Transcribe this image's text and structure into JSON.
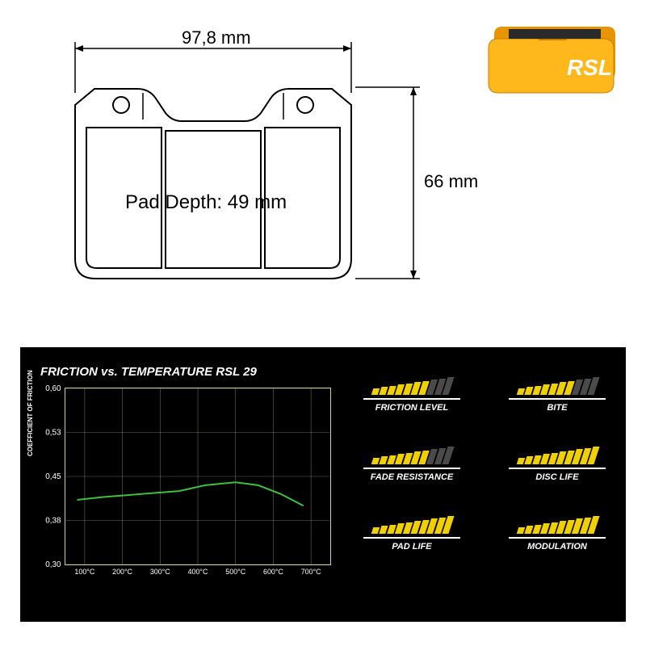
{
  "diagram": {
    "width_label": "97,8 mm",
    "height_label": "66 mm",
    "depth_label": "Pad Depth: 49 mm",
    "stroke_color": "#000000",
    "stroke_width": 2,
    "label_fontsize": 22,
    "depth_fontsize": 24
  },
  "product_photo": {
    "brand": "RSL",
    "pad_color": "#f5a200",
    "pad_highlight": "#ffb81c",
    "friction_color": "#2a2a2a",
    "logo_color": "#ffffff"
  },
  "chart": {
    "title": "FRICTION vs. TEMPERATURE RSL 29",
    "ylabel": "COEFFICIENT OF FRICTION",
    "title_fontsize": 15,
    "x_ticks": [
      "100°C",
      "200°C",
      "300°C",
      "400°C",
      "500°C",
      "600°C",
      "700°C"
    ],
    "y_ticks": [
      "0,30",
      "0,38",
      "0,45",
      "0,53",
      "0,60"
    ],
    "ylim": [
      0.3,
      0.6
    ],
    "xlim": [
      50,
      750
    ],
    "line_color": "#3fbf3f",
    "grid_color": "#d0d0a0",
    "background_color": "#000000",
    "line_width": 2,
    "curve": [
      [
        80,
        0.41
      ],
      [
        150,
        0.415
      ],
      [
        250,
        0.42
      ],
      [
        350,
        0.425
      ],
      [
        420,
        0.435
      ],
      [
        500,
        0.44
      ],
      [
        560,
        0.435
      ],
      [
        620,
        0.42
      ],
      [
        680,
        0.4
      ]
    ]
  },
  "ratings": {
    "max_segments": 10,
    "active_color": "#f0d000",
    "inactive_color": "#4a4a4a",
    "seg_min_h": 8,
    "seg_max_h": 22,
    "seg_width": 8,
    "seg_skew_deg": -18,
    "label_fontsize": 11,
    "items": [
      {
        "label": "FRICTION LEVEL",
        "value": 7
      },
      {
        "label": "BITE",
        "value": 7
      },
      {
        "label": "FADE RESISTANCE",
        "value": 7
      },
      {
        "label": "DISC LIFE",
        "value": 10
      },
      {
        "label": "PAD LIFE",
        "value": 10
      },
      {
        "label": "MODULATION",
        "value": 10
      }
    ]
  }
}
